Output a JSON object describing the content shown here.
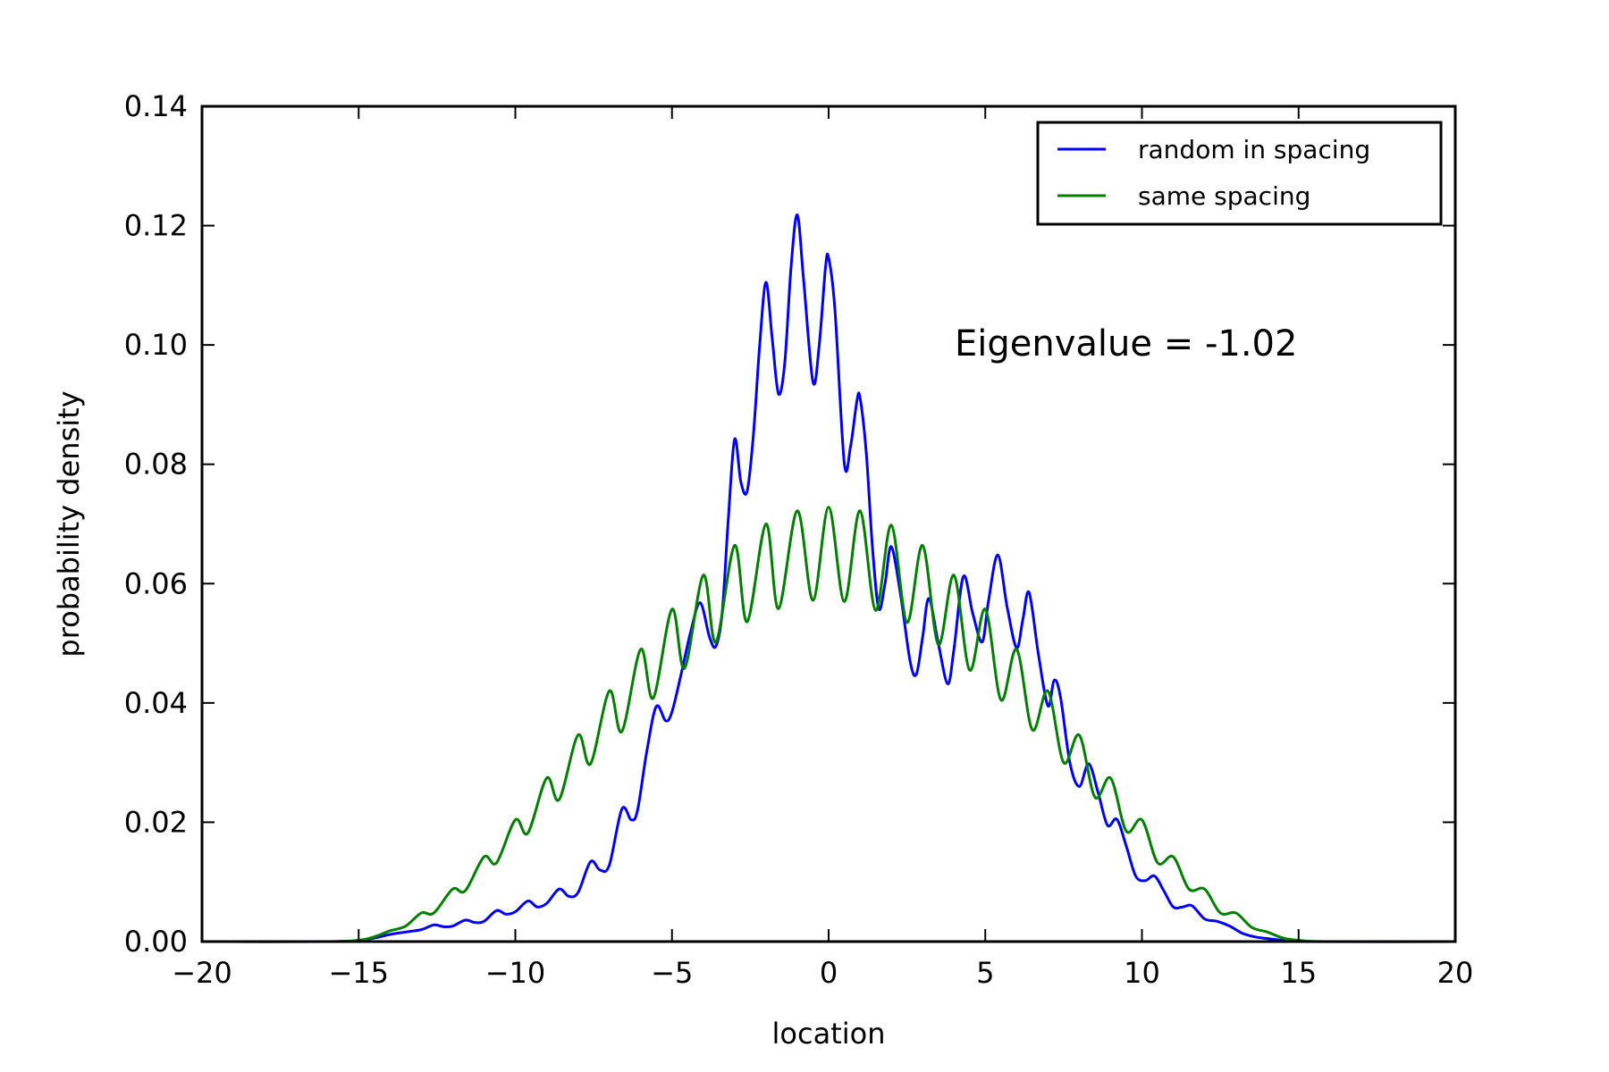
{
  "chart_data": {
    "type": "line",
    "xlabel": "location",
    "ylabel": "probability density",
    "xlim": [
      -20,
      20
    ],
    "ylim": [
      0,
      0.14
    ],
    "x_ticks": [
      -20,
      -15,
      -10,
      -5,
      0,
      5,
      10,
      15,
      20
    ],
    "x_tick_labels": [
      "−20",
      "−15",
      "−10",
      "−5",
      "0",
      "5",
      "10",
      "15",
      "20"
    ],
    "y_ticks": [
      0,
      0.02,
      0.04,
      0.06,
      0.08,
      0.1,
      0.12,
      0.14
    ],
    "y_tick_labels": [
      "0.00",
      "0.02",
      "0.04",
      "0.06",
      "0.08",
      "0.10",
      "0.12",
      "0.14"
    ],
    "grid": false,
    "legend_position": "top-right",
    "annotation": "Eigenvalue = -1.02",
    "series": [
      {
        "name": "random in spacing",
        "color": "#0000ff",
        "points": [
          [
            -20,
            0
          ],
          [
            -16,
            0
          ],
          [
            -15,
            0.0002
          ],
          [
            -14.5,
            0.0006
          ],
          [
            -14,
            0.0012
          ],
          [
            -13.5,
            0.0016
          ],
          [
            -13,
            0.002
          ],
          [
            -12.6,
            0.0028
          ],
          [
            -12.3,
            0.0025
          ],
          [
            -12,
            0.0026
          ],
          [
            -11.6,
            0.0036
          ],
          [
            -11.3,
            0.0032
          ],
          [
            -11,
            0.0034
          ],
          [
            -10.6,
            0.0052
          ],
          [
            -10.3,
            0.0046
          ],
          [
            -10,
            0.005
          ],
          [
            -9.6,
            0.0068
          ],
          [
            -9.3,
            0.0058
          ],
          [
            -9,
            0.0064
          ],
          [
            -8.6,
            0.0088
          ],
          [
            -8.3,
            0.0076
          ],
          [
            -8,
            0.0082
          ],
          [
            -7.6,
            0.0134
          ],
          [
            -7.3,
            0.012
          ],
          [
            -7,
            0.0128
          ],
          [
            -6.6,
            0.0222
          ],
          [
            -6.3,
            0.0204
          ],
          [
            -6.1,
            0.022
          ],
          [
            -5.8,
            0.032
          ],
          [
            -5.5,
            0.0394
          ],
          [
            -5.2,
            0.037
          ],
          [
            -5.0,
            0.0385
          ],
          [
            -4.7,
            0.045
          ],
          [
            -4.4,
            0.052
          ],
          [
            -4.1,
            0.0568
          ],
          [
            -3.8,
            0.051
          ],
          [
            -3.6,
            0.0495
          ],
          [
            -3.4,
            0.055
          ],
          [
            -3.2,
            0.071
          ],
          [
            -3.0,
            0.0842
          ],
          [
            -2.8,
            0.077
          ],
          [
            -2.6,
            0.0755
          ],
          [
            -2.4,
            0.085
          ],
          [
            -2.2,
            0.1
          ],
          [
            -2.0,
            0.1105
          ],
          [
            -1.8,
            0.101
          ],
          [
            -1.6,
            0.0918
          ],
          [
            -1.4,
            0.097
          ],
          [
            -1.2,
            0.113
          ],
          [
            -1.0,
            0.1218
          ],
          [
            -0.8,
            0.111
          ],
          [
            -0.5,
            0.0938
          ],
          [
            -0.3,
            0.1
          ],
          [
            -0.1,
            0.113
          ],
          [
            0.0,
            0.1146
          ],
          [
            0.2,
            0.106
          ],
          [
            0.5,
            0.0802
          ],
          [
            0.7,
            0.083
          ],
          [
            0.9,
            0.0905
          ],
          [
            1.0,
            0.0912
          ],
          [
            1.2,
            0.082
          ],
          [
            1.4,
            0.066
          ],
          [
            1.6,
            0.0558
          ],
          [
            1.8,
            0.06
          ],
          [
            2.0,
            0.0662
          ],
          [
            2.3,
            0.058
          ],
          [
            2.6,
            0.047
          ],
          [
            2.8,
            0.0448
          ],
          [
            3.0,
            0.051
          ],
          [
            3.2,
            0.0575
          ],
          [
            3.5,
            0.05
          ],
          [
            3.8,
            0.0432
          ],
          [
            4.0,
            0.049
          ],
          [
            4.3,
            0.0612
          ],
          [
            4.6,
            0.055
          ],
          [
            4.9,
            0.0502
          ],
          [
            5.1,
            0.057
          ],
          [
            5.4,
            0.0648
          ],
          [
            5.7,
            0.056
          ],
          [
            6.0,
            0.0492
          ],
          [
            6.2,
            0.054
          ],
          [
            6.4,
            0.0585
          ],
          [
            6.7,
            0.048
          ],
          [
            7.0,
            0.0395
          ],
          [
            7.2,
            0.0438
          ],
          [
            7.4,
            0.041
          ],
          [
            7.7,
            0.03
          ],
          [
            8.0,
            0.026
          ],
          [
            8.3,
            0.0298
          ],
          [
            8.6,
            0.025
          ],
          [
            8.9,
            0.0195
          ],
          [
            9.2,
            0.0205
          ],
          [
            9.5,
            0.016
          ],
          [
            9.8,
            0.011
          ],
          [
            10.1,
            0.0102
          ],
          [
            10.4,
            0.011
          ],
          [
            10.7,
            0.0085
          ],
          [
            11.0,
            0.0058
          ],
          [
            11.3,
            0.0058
          ],
          [
            11.6,
            0.006
          ],
          [
            12.0,
            0.0038
          ],
          [
            12.4,
            0.0034
          ],
          [
            12.8,
            0.0026
          ],
          [
            13.2,
            0.0014
          ],
          [
            13.6,
            0.0008
          ],
          [
            14.0,
            0.0005
          ],
          [
            14.5,
            0.0002
          ],
          [
            15,
            0
          ],
          [
            20,
            0
          ]
        ]
      },
      {
        "name": "same spacing",
        "color": "#008000",
        "points": [
          [
            -20,
            0
          ],
          [
            -16,
            0
          ],
          [
            -15,
            0.0002
          ],
          [
            -14.5,
            0.0008
          ],
          [
            -14,
            0.0018
          ],
          [
            -13.5,
            0.0026
          ],
          [
            -13,
            0.0048
          ],
          [
            -12.6,
            0.0048
          ],
          [
            -12,
            0.0088
          ],
          [
            -11.6,
            0.0085
          ],
          [
            -11,
            0.0142
          ],
          [
            -10.6,
            0.0132
          ],
          [
            -10,
            0.0204
          ],
          [
            -9.6,
            0.0182
          ],
          [
            -9,
            0.0274
          ],
          [
            -8.6,
            0.0238
          ],
          [
            -8,
            0.0346
          ],
          [
            -7.6,
            0.0298
          ],
          [
            -7,
            0.042
          ],
          [
            -6.6,
            0.0352
          ],
          [
            -6,
            0.049
          ],
          [
            -5.6,
            0.0408
          ],
          [
            -5,
            0.0557
          ],
          [
            -4.6,
            0.0458
          ],
          [
            -4,
            0.0614
          ],
          [
            -3.6,
            0.0502
          ],
          [
            -3,
            0.0664
          ],
          [
            -2.6,
            0.0536
          ],
          [
            -2,
            0.07
          ],
          [
            -1.6,
            0.0558
          ],
          [
            -1,
            0.0722
          ],
          [
            -0.5,
            0.0572
          ],
          [
            0,
            0.0728
          ],
          [
            0.5,
            0.057
          ],
          [
            1,
            0.0722
          ],
          [
            1.5,
            0.0555
          ],
          [
            2,
            0.0698
          ],
          [
            2.5,
            0.0535
          ],
          [
            3,
            0.0664
          ],
          [
            3.5,
            0.0498
          ],
          [
            4,
            0.0614
          ],
          [
            4.5,
            0.0455
          ],
          [
            5,
            0.0557
          ],
          [
            5.5,
            0.0405
          ],
          [
            6,
            0.049
          ],
          [
            6.5,
            0.0355
          ],
          [
            7,
            0.042
          ],
          [
            7.5,
            0.03
          ],
          [
            8,
            0.0346
          ],
          [
            8.5,
            0.0242
          ],
          [
            9,
            0.0274
          ],
          [
            9.5,
            0.0185
          ],
          [
            10,
            0.0204
          ],
          [
            10.5,
            0.0132
          ],
          [
            11,
            0.0142
          ],
          [
            11.5,
            0.0088
          ],
          [
            12,
            0.0088
          ],
          [
            12.5,
            0.0048
          ],
          [
            13,
            0.0048
          ],
          [
            13.5,
            0.0024
          ],
          [
            14,
            0.0016
          ],
          [
            14.5,
            0.0006
          ],
          [
            15,
            0.0002
          ],
          [
            16,
            0
          ],
          [
            20,
            0
          ]
        ]
      }
    ]
  }
}
